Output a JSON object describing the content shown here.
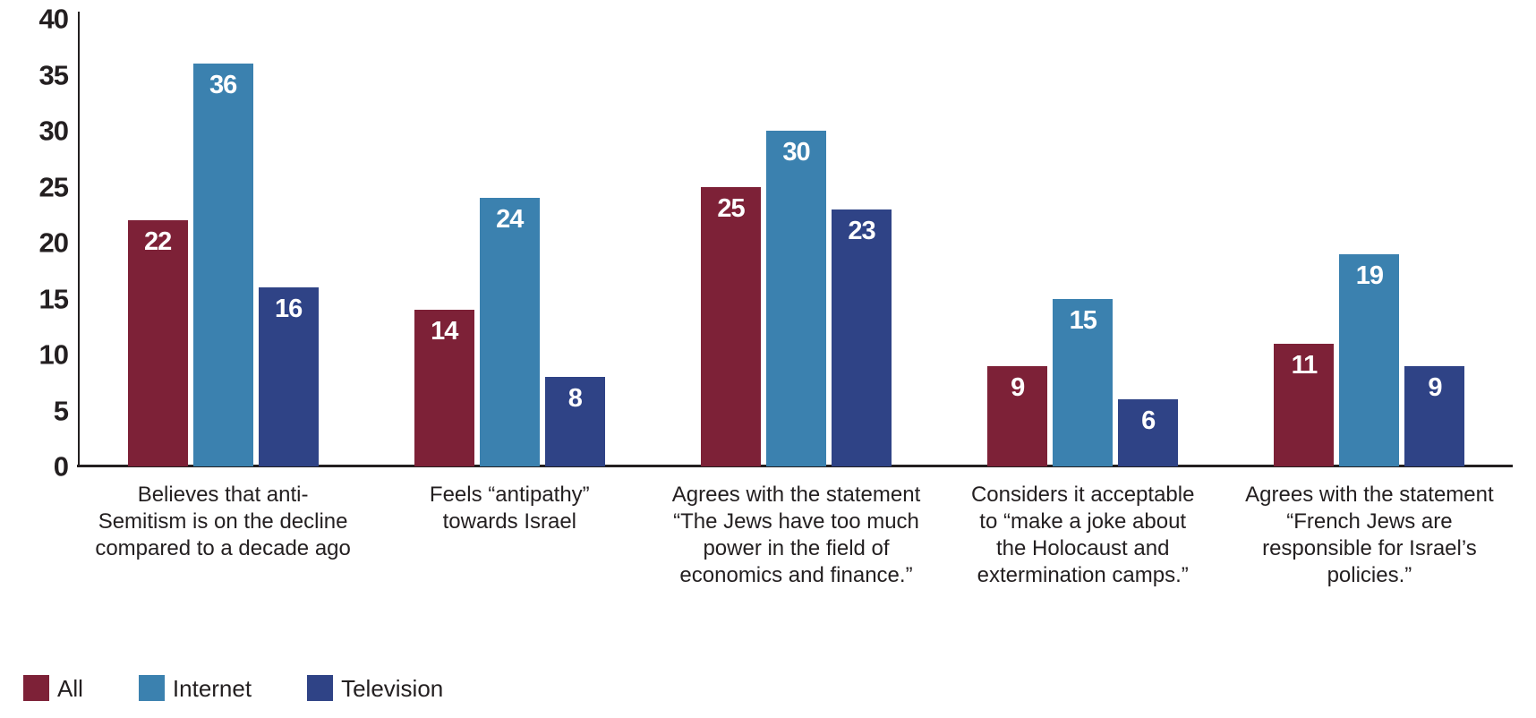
{
  "chart_data": {
    "type": "bar",
    "title": "",
    "xlabel": "",
    "ylabel": "",
    "ylim": [
      0,
      40
    ],
    "yticks": [
      0,
      5,
      10,
      15,
      20,
      25,
      30,
      35,
      40
    ],
    "grid": false,
    "legend_position": "bottom-left",
    "axis_color": "#231f20",
    "value_label_color": "#ffffff",
    "categories": [
      "Believes that anti-Semitism is on the decline compared to a decade ago",
      "Feels “antipathy” towards Israel",
      "Agrees with the statement “The Jews have too much power in the field of economics and finance.”",
      "Considers it acceptable to “make a joke about the Holocaust and extermination camps.”",
      "Agrees with the statement “French Jews are responsible for Israel’s policies.”"
    ],
    "category_lines": [
      [
        "Believes that anti-",
        "Semitism is on the decline",
        "compared to a decade ago"
      ],
      [
        "Feels “antipathy”",
        "towards Israel"
      ],
      [
        "Agrees with the statement",
        "“The Jews have too much",
        "power in the field of",
        "economics and finance.”"
      ],
      [
        "Considers it acceptable",
        "to “make a joke about",
        "the Holocaust and",
        "extermination camps.”"
      ],
      [
        "Agrees with the statement",
        "“French Jews are",
        "responsible for Israel’s",
        "policies.”"
      ]
    ],
    "series": [
      {
        "name": "All",
        "color": "#7D2137",
        "values": [
          22,
          14,
          25,
          9,
          11
        ]
      },
      {
        "name": "Internet",
        "color": "#3B81AF",
        "values": [
          36,
          24,
          30,
          15,
          19
        ]
      },
      {
        "name": "Television",
        "color": "#2F4386",
        "values": [
          16,
          8,
          23,
          6,
          9
        ]
      }
    ]
  }
}
